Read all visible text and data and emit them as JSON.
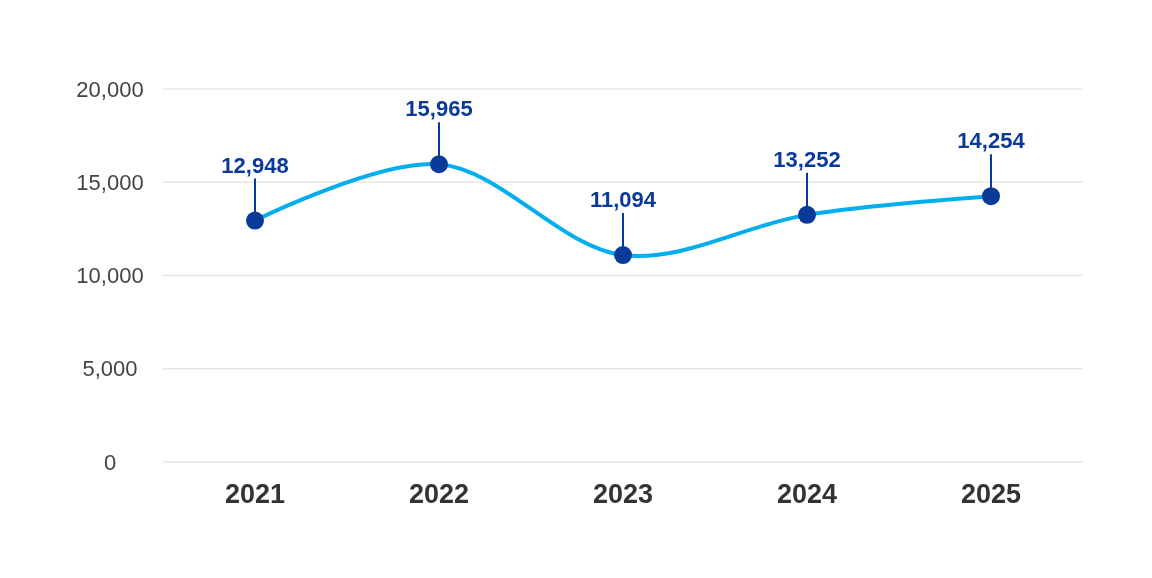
{
  "chart_data": {
    "type": "line",
    "categories": [
      "2021",
      "2022",
      "2023",
      "2024",
      "2025"
    ],
    "series": [
      {
        "color": "#00aeef",
        "colors": [
          "#0a3a99",
          "#0a3a99",
          "#0a3a99",
          "#0a3a99",
          "#0a3a99"
        ],
        "values": [
          12948,
          15965,
          11094,
          13252,
          14254
        ],
        "value_labels": [
          "12,948",
          "15,965",
          "11,094",
          "13,252",
          "14,254"
        ]
      }
    ],
    "ylim": [
      0,
      20000
    ],
    "yticks": [
      {
        "value": 0,
        "label": "0"
      },
      {
        "value": 5000,
        "label": "5,000"
      },
      {
        "value": 10000,
        "label": "10,000"
      },
      {
        "value": 15000,
        "label": "15,000"
      },
      {
        "value": 20000,
        "label": "20,000"
      }
    ],
    "grid": "y",
    "marker": "circle",
    "line_style": "solid"
  }
}
